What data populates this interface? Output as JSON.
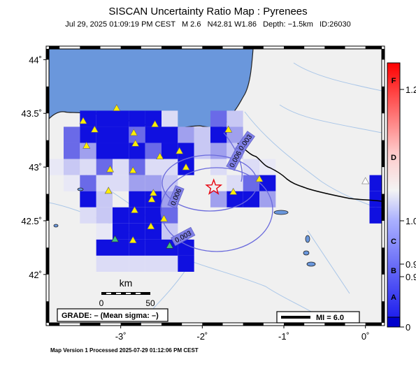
{
  "header": {
    "title": "SISCAN Uncertainty Ratio Map : Pyrenees",
    "subtitle": "Jul 29, 2025 01:09:19 PM CEST   M 2.6   N42.81 W1.86   Depth: −1.5km   ID:26030"
  },
  "map": {
    "lat_ticks": [
      "44˚",
      "43.5˚",
      "43˚",
      "42.5˚",
      "42˚"
    ],
    "lon_ticks": [
      "-3˚",
      "-2˚",
      "-1˚",
      "0˚"
    ],
    "lat_range": [
      41.55,
      44.1
    ],
    "lon_range": [
      -3.88,
      0.2
    ],
    "epicenter": {
      "lat": 42.81,
      "lon": -1.86
    },
    "contours": [
      {
        "label": "0.003"
      },
      {
        "label": "0.006"
      },
      {
        "label": "0.006"
      },
      {
        "label": "0.003"
      }
    ],
    "stations": [
      {
        "lat": 43.43,
        "lon": -3.46
      },
      {
        "lat": 43.35,
        "lon": -3.32
      },
      {
        "lat": 43.2,
        "lon": -3.42
      },
      {
        "lat": 43.55,
        "lon": -3.05
      },
      {
        "lat": 43.32,
        "lon": -2.84
      },
      {
        "lat": 43.4,
        "lon": -2.58
      },
      {
        "lat": 43.22,
        "lon": -2.82
      },
      {
        "lat": 43.15,
        "lon": -2.28
      },
      {
        "lat": 43.0,
        "lon": -2.2
      },
      {
        "lat": 43.1,
        "lon": -2.52
      },
      {
        "lat": 42.97,
        "lon": -2.85
      },
      {
        "lat": 42.98,
        "lon": -3.13
      },
      {
        "lat": 42.78,
        "lon": -3.15
      },
      {
        "lat": 42.76,
        "lon": -2.6
      },
      {
        "lat": 42.7,
        "lon": -2.62
      },
      {
        "lat": 42.6,
        "lon": -2.83
      },
      {
        "lat": 42.52,
        "lon": -2.47
      },
      {
        "lat": 42.45,
        "lon": -2.63
      },
      {
        "lat": 42.32,
        "lon": -2.85
      },
      {
        "lat": 42.77,
        "lon": -1.62
      },
      {
        "lat": 43.35,
        "lon": -1.68
      },
      {
        "lat": 42.89,
        "lon": -1.3
      }
    ],
    "stations_green": [
      {
        "lat": 42.33,
        "lon": -3.07
      },
      {
        "lat": 42.27,
        "lon": -2.4
      }
    ],
    "stations_grey": [
      {
        "lat": 42.87,
        "lon": 0.0
      }
    ],
    "grid_cells": [
      {
        "lat": 43.45,
        "lon": -3.4,
        "v": 1.0
      },
      {
        "lat": 43.45,
        "lon": -3.2,
        "v": 1.0
      },
      {
        "lat": 43.45,
        "lon": -3.0,
        "v": 1.0
      },
      {
        "lat": 43.45,
        "lon": -2.8,
        "v": 1.0
      },
      {
        "lat": 43.45,
        "lon": -2.6,
        "v": 1.0
      },
      {
        "lat": 43.45,
        "lon": -2.4,
        "v": 0.2
      },
      {
        "lat": 43.45,
        "lon": -1.8,
        "v": 0.9
      },
      {
        "lat": 43.45,
        "lon": -1.6,
        "v": 0.4
      },
      {
        "lat": 43.3,
        "lon": -3.6,
        "v": 0.7
      },
      {
        "lat": 43.3,
        "lon": -3.4,
        "v": 1.0
      },
      {
        "lat": 43.3,
        "lon": -3.2,
        "v": 1.0
      },
      {
        "lat": 43.3,
        "lon": -3.0,
        "v": 1.0
      },
      {
        "lat": 43.3,
        "lon": -2.8,
        "v": 0.7
      },
      {
        "lat": 43.3,
        "lon": -2.6,
        "v": 1.0
      },
      {
        "lat": 43.3,
        "lon": -2.4,
        "v": 1.0
      },
      {
        "lat": 43.3,
        "lon": -2.2,
        "v": 0.5
      },
      {
        "lat": 43.3,
        "lon": -2.0,
        "v": 0.3
      },
      {
        "lat": 43.3,
        "lon": -1.8,
        "v": 1.0
      },
      {
        "lat": 43.3,
        "lon": -1.6,
        "v": 0.5
      },
      {
        "lat": 43.15,
        "lon": -3.6,
        "v": 0.7
      },
      {
        "lat": 43.15,
        "lon": -3.4,
        "v": 0.5
      },
      {
        "lat": 43.15,
        "lon": -3.2,
        "v": 1.0
      },
      {
        "lat": 43.15,
        "lon": -3.0,
        "v": 1.0
      },
      {
        "lat": 43.15,
        "lon": -2.8,
        "v": 1.0
      },
      {
        "lat": 43.15,
        "lon": -2.6,
        "v": 0.7
      },
      {
        "lat": 43.15,
        "lon": -2.4,
        "v": 1.0
      },
      {
        "lat": 43.15,
        "lon": -2.2,
        "v": 1.0
      },
      {
        "lat": 43.15,
        "lon": -2.0,
        "v": 0.3
      },
      {
        "lat": 43.15,
        "lon": -1.8,
        "v": 0.5
      },
      {
        "lat": 43.15,
        "lon": -1.6,
        "v": 0.3
      },
      {
        "lat": 43.0,
        "lon": -3.8,
        "v": 0.1
      },
      {
        "lat": 43.0,
        "lon": -3.6,
        "v": 0.3
      },
      {
        "lat": 43.0,
        "lon": -3.4,
        "v": 0.2
      },
      {
        "lat": 43.0,
        "lon": -3.2,
        "v": 0.7
      },
      {
        "lat": 43.0,
        "lon": -3.0,
        "v": 0.2
      },
      {
        "lat": 43.0,
        "lon": -2.8,
        "v": 0.7
      },
      {
        "lat": 43.0,
        "lon": -2.6,
        "v": 0.2
      },
      {
        "lat": 43.0,
        "lon": -2.4,
        "v": 0.2
      },
      {
        "lat": 43.0,
        "lon": -2.2,
        "v": 1.0
      },
      {
        "lat": 43.0,
        "lon": -1.8,
        "v": 0.2
      },
      {
        "lat": 43.0,
        "lon": -1.4,
        "v": 0.2
      },
      {
        "lat": 43.0,
        "lon": -1.2,
        "v": 0.1
      },
      {
        "lat": 42.85,
        "lon": -3.6,
        "v": 0.1
      },
      {
        "lat": 42.85,
        "lon": -3.4,
        "v": 0.7
      },
      {
        "lat": 42.85,
        "lon": -3.2,
        "v": 0.2
      },
      {
        "lat": 42.85,
        "lon": -3.0,
        "v": 0.2
      },
      {
        "lat": 42.85,
        "lon": -2.8,
        "v": 0.5
      },
      {
        "lat": 42.85,
        "lon": -2.6,
        "v": 0.5
      },
      {
        "lat": 42.85,
        "lon": -2.4,
        "v": 0.3
      },
      {
        "lat": 42.85,
        "lon": -1.6,
        "v": 0.2
      },
      {
        "lat": 42.85,
        "lon": -1.4,
        "v": 0.7
      },
      {
        "lat": 42.85,
        "lon": -1.2,
        "v": 1.0
      },
      {
        "lat": 42.7,
        "lon": -3.4,
        "v": 1.0
      },
      {
        "lat": 42.7,
        "lon": -3.2,
        "v": 0.3
      },
      {
        "lat": 42.7,
        "lon": -2.8,
        "v": 1.0
      },
      {
        "lat": 42.7,
        "lon": -2.6,
        "v": 1.0
      },
      {
        "lat": 42.7,
        "lon": -2.4,
        "v": 0.5
      },
      {
        "lat": 42.7,
        "lon": -1.8,
        "v": 0.5
      },
      {
        "lat": 42.7,
        "lon": -1.6,
        "v": 1.0
      },
      {
        "lat": 42.7,
        "lon": -1.4,
        "v": 1.0
      },
      {
        "lat": 42.7,
        "lon": -1.2,
        "v": 0.5
      },
      {
        "lat": 42.55,
        "lon": -3.4,
        "v": 0.2
      },
      {
        "lat": 42.55,
        "lon": -3.2,
        "v": 0.3
      },
      {
        "lat": 42.55,
        "lon": -3.0,
        "v": 1.0
      },
      {
        "lat": 42.55,
        "lon": -2.8,
        "v": 1.0
      },
      {
        "lat": 42.55,
        "lon": -2.6,
        "v": 1.0
      },
      {
        "lat": 42.55,
        "lon": -2.4,
        "v": 0.7
      },
      {
        "lat": 42.4,
        "lon": -3.2,
        "v": 0.1
      },
      {
        "lat": 42.4,
        "lon": -3.0,
        "v": 1.0
      },
      {
        "lat": 42.4,
        "lon": -2.8,
        "v": 1.0
      },
      {
        "lat": 42.4,
        "lon": -2.6,
        "v": 1.0
      },
      {
        "lat": 42.4,
        "lon": -2.4,
        "v": 0.3
      },
      {
        "lat": 42.25,
        "lon": -3.2,
        "v": 1.0
      },
      {
        "lat": 42.25,
        "lon": -3.0,
        "v": 1.0
      },
      {
        "lat": 42.25,
        "lon": -2.8,
        "v": 1.0
      },
      {
        "lat": 42.25,
        "lon": -2.6,
        "v": 1.0
      },
      {
        "lat": 42.25,
        "lon": -2.4,
        "v": 1.0
      },
      {
        "lat": 42.25,
        "lon": -2.2,
        "v": 1.0
      },
      {
        "lat": 42.1,
        "lon": -3.2,
        "v": 0.2
      },
      {
        "lat": 42.1,
        "lon": -3.0,
        "v": 0.2
      },
      {
        "lat": 42.1,
        "lon": -2.8,
        "v": 0.2
      },
      {
        "lat": 42.1,
        "lon": -2.6,
        "v": 0.2
      },
      {
        "lat": 42.1,
        "lon": -2.4,
        "v": 0.2
      },
      {
        "lat": 42.1,
        "lon": -2.2,
        "v": 1.0
      },
      {
        "lat": 42.85,
        "lon": 0.15,
        "v": 1.0
      },
      {
        "lat": 42.7,
        "lon": 0.15,
        "v": 1.0
      },
      {
        "lat": 42.55,
        "lon": 0.15,
        "v": 1.0
      }
    ]
  },
  "scale_bar": {
    "title": "km",
    "start": "0",
    "end": "50"
  },
  "grade_box": {
    "text": "GRADE: – (Mean sigma: –)"
  },
  "mi_box": {
    "text": "MI = 6.0"
  },
  "colorbar": {
    "colors": {
      "top": "#ff0000",
      "mid": "#f4f4f4",
      "bottom": "#0000cc"
    },
    "letters": [
      "F",
      "D",
      "C",
      "B",
      "A"
    ],
    "values": [
      "1.2",
      "1.0",
      "0.9",
      "0.9",
      "0"
    ]
  },
  "footer": {
    "text": "Map Version 1 Processed 2025-07-29 01:12:06 PM CEST"
  }
}
